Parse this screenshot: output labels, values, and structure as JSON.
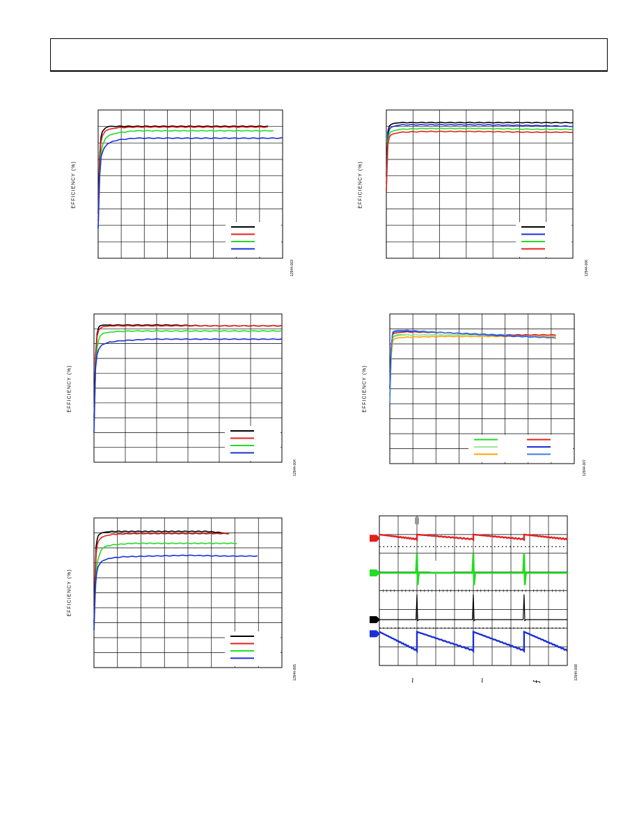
{
  "page": {
    "y_axis_label": "EFFICIENCY (%)"
  },
  "colors": {
    "black": "#000000",
    "red": "#e41f1f",
    "green": "#22dd22",
    "blue": "#1a2fd8",
    "orange": "#ffa500",
    "light_green": "#9de39d",
    "light_blue": "#3c7be0",
    "gray": "#999999"
  },
  "figures": [
    {
      "id": "1",
      "code": "12944-003"
    },
    {
      "id": "2",
      "code": "12944-006"
    },
    {
      "id": "3",
      "code": "12944-004"
    },
    {
      "id": "4",
      "code": "12944-007"
    },
    {
      "id": "5",
      "code": "12944-005"
    },
    {
      "id": "6",
      "code": "12944-008"
    }
  ],
  "chart_data": [
    {
      "type": "line",
      "title": "",
      "xlabel": "",
      "ylabel": "EFFICIENCY (%)",
      "xlim": [
        0,
        1
      ],
      "ylim": [
        0,
        1
      ],
      "series": [
        {
          "color": "black",
          "x": [
            0.0,
            0.01,
            0.02,
            0.04,
            0.06,
            0.1,
            0.2,
            0.4,
            0.6,
            0.8,
            0.92
          ],
          "y": [
            0.3,
            0.78,
            0.85,
            0.88,
            0.89,
            0.89,
            0.89,
            0.89,
            0.89,
            0.89,
            0.89
          ]
        },
        {
          "color": "red",
          "x": [
            0.0,
            0.01,
            0.02,
            0.04,
            0.06,
            0.1,
            0.2,
            0.4,
            0.6,
            0.8,
            0.92
          ],
          "y": [
            0.25,
            0.74,
            0.82,
            0.86,
            0.87,
            0.88,
            0.885,
            0.885,
            0.885,
            0.885,
            0.885
          ]
        },
        {
          "color": "green",
          "x": [
            0.0,
            0.01,
            0.02,
            0.04,
            0.06,
            0.1,
            0.2,
            0.4,
            0.6,
            0.8,
            0.95
          ],
          "y": [
            0.2,
            0.65,
            0.75,
            0.81,
            0.83,
            0.845,
            0.86,
            0.86,
            0.86,
            0.86,
            0.86
          ]
        },
        {
          "color": "blue",
          "x": [
            0.0,
            0.008,
            0.015,
            0.03,
            0.05,
            0.08,
            0.12,
            0.2,
            0.4,
            0.6,
            0.8,
            1.0
          ],
          "y": [
            0.2,
            0.55,
            0.68,
            0.74,
            0.77,
            0.79,
            0.8,
            0.81,
            0.81,
            0.81,
            0.81,
            0.81
          ]
        }
      ],
      "legend_position": "bottom-right"
    },
    {
      "type": "line",
      "title": "",
      "xlabel": "",
      "ylabel": "EFFICIENCY (%)",
      "xlim": [
        0,
        1
      ],
      "ylim": [
        0,
        1
      ],
      "series": [
        {
          "color": "black",
          "x": [
            0.0,
            0.005,
            0.01,
            0.02,
            0.04,
            0.08,
            0.2,
            0.5,
            0.8,
            1.0
          ],
          "y": [
            0.55,
            0.8,
            0.88,
            0.9,
            0.91,
            0.915,
            0.915,
            0.915,
            0.915,
            0.915
          ]
        },
        {
          "color": "blue",
          "x": [
            0.0,
            0.005,
            0.01,
            0.02,
            0.04,
            0.08,
            0.2,
            0.5,
            0.8,
            1.0
          ],
          "y": [
            0.5,
            0.78,
            0.85,
            0.88,
            0.89,
            0.9,
            0.9,
            0.9,
            0.895,
            0.89
          ]
        },
        {
          "color": "green",
          "x": [
            0.0,
            0.005,
            0.01,
            0.02,
            0.04,
            0.08,
            0.2,
            0.5,
            0.8,
            1.0
          ],
          "y": [
            0.45,
            0.75,
            0.82,
            0.85,
            0.86,
            0.87,
            0.875,
            0.875,
            0.87,
            0.87
          ]
        },
        {
          "color": "red",
          "x": [
            0.0,
            0.005,
            0.01,
            0.02,
            0.04,
            0.08,
            0.2,
            0.5,
            0.8,
            1.0
          ],
          "y": [
            0.45,
            0.72,
            0.79,
            0.83,
            0.84,
            0.85,
            0.855,
            0.855,
            0.85,
            0.85
          ]
        }
      ],
      "legend_position": "bottom-right"
    },
    {
      "type": "line",
      "title": "",
      "xlabel": "",
      "ylabel": "EFFICIENCY (%)",
      "xlim": [
        0,
        1
      ],
      "ylim": [
        0,
        1
      ],
      "series": [
        {
          "color": "black",
          "x": [
            0.0,
            0.01,
            0.02,
            0.03,
            0.05,
            0.1,
            0.2,
            0.4,
            0.6,
            0.8,
            1.0
          ],
          "y": [
            0.3,
            0.8,
            0.9,
            0.92,
            0.925,
            0.925,
            0.925,
            0.925,
            0.92,
            0.92,
            0.92
          ]
        },
        {
          "color": "red",
          "x": [
            0.0,
            0.01,
            0.02,
            0.03,
            0.05,
            0.1,
            0.2,
            0.4,
            0.6,
            0.8,
            1.0
          ],
          "y": [
            0.28,
            0.78,
            0.88,
            0.9,
            0.915,
            0.92,
            0.92,
            0.92,
            0.92,
            0.92,
            0.92
          ]
        },
        {
          "color": "green",
          "x": [
            0.0,
            0.01,
            0.02,
            0.03,
            0.05,
            0.1,
            0.2,
            0.4,
            0.6,
            0.8,
            1.0
          ],
          "y": [
            0.25,
            0.7,
            0.8,
            0.85,
            0.87,
            0.88,
            0.885,
            0.885,
            0.885,
            0.885,
            0.885
          ]
        },
        {
          "color": "blue",
          "x": [
            0.0,
            0.005,
            0.01,
            0.02,
            0.04,
            0.08,
            0.15,
            0.3,
            0.5,
            0.7,
            1.0
          ],
          "y": [
            0.2,
            0.55,
            0.68,
            0.75,
            0.79,
            0.81,
            0.82,
            0.83,
            0.83,
            0.83,
            0.83
          ]
        }
      ],
      "legend_position": "bottom-right"
    },
    {
      "type": "line",
      "title": "",
      "xlabel": "",
      "ylabel": "EFFICIENCY (%)",
      "xlim": [
        0,
        1
      ],
      "ylim": [
        0,
        1
      ],
      "series": [
        {
          "color": "green",
          "x": [
            0.0,
            0.01,
            0.02,
            0.04,
            0.1,
            0.3,
            0.6,
            0.9
          ],
          "y": [
            0.45,
            0.84,
            0.85,
            0.86,
            0.86,
            0.86,
            0.86,
            0.86
          ]
        },
        {
          "color": "light_green",
          "x": [
            0.0,
            0.01,
            0.02,
            0.04,
            0.1,
            0.3,
            0.6,
            0.9
          ],
          "y": [
            0.45,
            0.83,
            0.845,
            0.855,
            0.86,
            0.86,
            0.86,
            0.86
          ]
        },
        {
          "color": "orange",
          "x": [
            0.0,
            0.01,
            0.02,
            0.04,
            0.1,
            0.3,
            0.6,
            0.9
          ],
          "y": [
            0.45,
            0.8,
            0.83,
            0.84,
            0.845,
            0.85,
            0.85,
            0.85
          ]
        },
        {
          "color": "red",
          "x": [
            0.0,
            0.01,
            0.02,
            0.04,
            0.1,
            0.3,
            0.6,
            0.9
          ],
          "y": [
            0.5,
            0.85,
            0.87,
            0.875,
            0.88,
            0.875,
            0.86,
            0.86
          ]
        },
        {
          "color": "blue",
          "x": [
            0.0,
            0.01,
            0.02,
            0.04,
            0.1,
            0.3,
            0.6,
            0.9
          ],
          "y": [
            0.5,
            0.86,
            0.88,
            0.885,
            0.885,
            0.875,
            0.855,
            0.84
          ]
        },
        {
          "color": "light_blue",
          "x": [
            0.0,
            0.01,
            0.02,
            0.04,
            0.1,
            0.3,
            0.6,
            0.9
          ],
          "y": [
            0.4,
            0.87,
            0.885,
            0.89,
            0.89,
            0.875,
            0.86,
            0.84
          ]
        }
      ],
      "legend_position": "bottom-right"
    },
    {
      "type": "line",
      "title": "",
      "xlabel": "",
      "ylabel": "EFFICIENCY (%)",
      "xlim": [
        0,
        1
      ],
      "ylim": [
        0,
        1
      ],
      "series": [
        {
          "color": "black",
          "x": [
            0.0,
            0.01,
            0.02,
            0.04,
            0.06,
            0.1,
            0.2,
            0.4,
            0.6,
            0.69
          ],
          "y": [
            0.3,
            0.8,
            0.88,
            0.9,
            0.905,
            0.91,
            0.91,
            0.91,
            0.91,
            0.9
          ]
        },
        {
          "color": "red",
          "x": [
            0.0,
            0.01,
            0.02,
            0.04,
            0.06,
            0.1,
            0.2,
            0.4,
            0.6,
            0.72
          ],
          "y": [
            0.28,
            0.75,
            0.84,
            0.87,
            0.88,
            0.89,
            0.895,
            0.895,
            0.895,
            0.895
          ]
        },
        {
          "color": "green",
          "x": [
            0.0,
            0.01,
            0.02,
            0.04,
            0.06,
            0.1,
            0.2,
            0.4,
            0.6,
            0.76
          ],
          "y": [
            0.25,
            0.6,
            0.72,
            0.79,
            0.81,
            0.82,
            0.83,
            0.83,
            0.83,
            0.83
          ]
        },
        {
          "color": "blue",
          "x": [
            0.0,
            0.005,
            0.01,
            0.02,
            0.04,
            0.08,
            0.15,
            0.3,
            0.5,
            0.7,
            0.87
          ],
          "y": [
            0.25,
            0.5,
            0.6,
            0.67,
            0.71,
            0.73,
            0.74,
            0.745,
            0.75,
            0.745,
            0.745
          ]
        }
      ],
      "legend_position": "bottom-right"
    },
    {
      "type": "line",
      "title": "",
      "xlabel": "",
      "ylabel": "",
      "xlim": [
        0,
        10
      ],
      "ylim": [
        0,
        8
      ],
      "series": [
        {
          "color": "red",
          "shape": "sawtooth",
          "edges": [
            0,
            2.0,
            5.0,
            7.7,
            10
          ],
          "baseline": 6.8,
          "high": 7.0,
          "low": 6.75
        },
        {
          "color": "green",
          "shape": "spikes",
          "edges": [
            2.0,
            5.0,
            7.7
          ],
          "baseline": 4.95,
          "spike_up": 6.0,
          "spike_down": 4.3
        },
        {
          "color": "black",
          "shape": "spikes",
          "edges": [
            2.0,
            5.0,
            7.7
          ],
          "baseline": 2.45,
          "spike_up": 3.8,
          "spike_down": 2.4
        },
        {
          "color": "blue",
          "shape": "sawtooth",
          "edges": [
            0,
            2.0,
            5.0,
            7.7,
            10
          ],
          "baseline": 1.7,
          "high": 1.8,
          "low": 0.8
        }
      ],
      "legend_position": "none"
    }
  ]
}
